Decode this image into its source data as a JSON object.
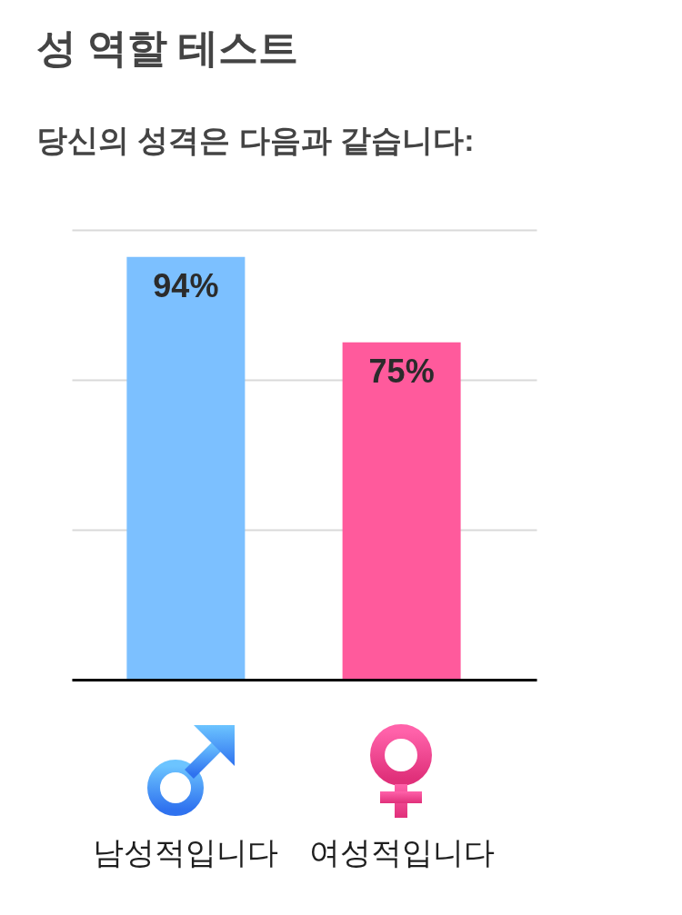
{
  "chart_data": {
    "type": "bar",
    "title": "성 역할 테스트",
    "subtitle": "당신의 성격은 다음과 같습니다:",
    "categories": [
      "남성적입니다",
      "여성적입니다"
    ],
    "values": [
      94,
      75
    ],
    "colors": [
      "#7cc0ff",
      "#ff5a9c"
    ],
    "value_labels": [
      "94%",
      "75%"
    ],
    "ylim": [
      0,
      100
    ],
    "yticks": [
      0,
      33.3,
      66.7,
      100
    ],
    "grid": "y",
    "tick_labels": "x"
  }
}
